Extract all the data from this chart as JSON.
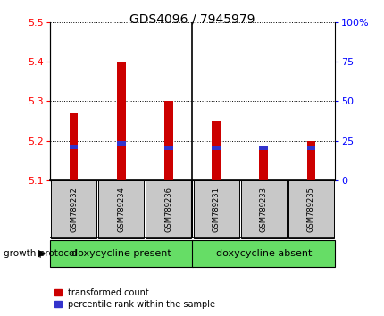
{
  "title": "GDS4096 / 7945979",
  "samples": [
    "GSM789232",
    "GSM789234",
    "GSM789236",
    "GSM789231",
    "GSM789233",
    "GSM789235"
  ],
  "red_values": [
    5.27,
    5.4,
    5.3,
    5.25,
    5.185,
    5.2
  ],
  "blue_values": [
    5.185,
    5.192,
    5.182,
    5.182,
    5.182,
    5.182
  ],
  "ylim_left": [
    5.1,
    5.5
  ],
  "ylim_right": [
    0,
    100
  ],
  "yticks_left": [
    5.1,
    5.2,
    5.3,
    5.4,
    5.5
  ],
  "yticks_right": [
    0,
    25,
    50,
    75,
    100
  ],
  "bar_base": 5.1,
  "group1_label": "doxycycline present",
  "group2_label": "doxycycline absent",
  "group1_indices": [
    0,
    1,
    2
  ],
  "group2_indices": [
    3,
    4,
    5
  ],
  "protocol_label": "growth protocol",
  "legend_red": "transformed count",
  "legend_blue": "percentile rank within the sample",
  "bar_color_red": "#cc0000",
  "bar_color_blue": "#3333cc",
  "group_color": "#66dd66",
  "tick_label_bg": "#c8c8c8",
  "bar_width": 0.18,
  "blue_bar_height": 0.012,
  "title_fontsize": 10,
  "axis_fontsize": 8,
  "sample_fontsize": 6,
  "legend_fontsize": 7,
  "group_fontsize": 8
}
